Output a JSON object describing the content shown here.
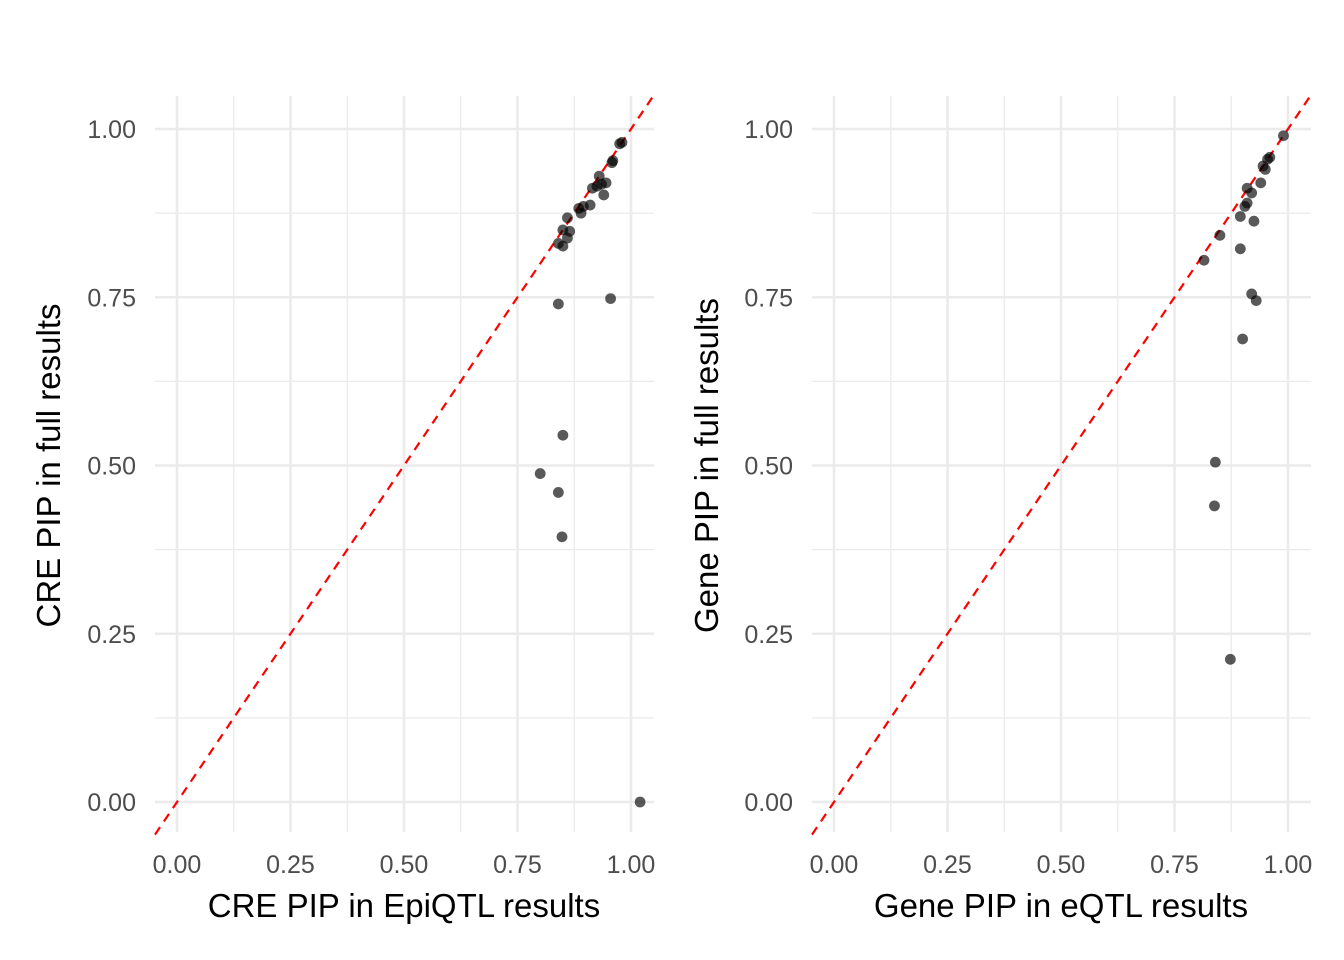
{
  "chart_data": [
    {
      "type": "scatter",
      "xlabel": "CRE PIP in EpiQTL results",
      "ylabel": "CRE PIP in full results",
      "xlim": [
        0.0,
        1.0
      ],
      "ylim": [
        0.0,
        1.0
      ],
      "x_ticks": [
        "0.00",
        "0.25",
        "0.50",
        "0.75",
        "1.00"
      ],
      "y_ticks": [
        "0.00",
        "0.25",
        "0.50",
        "0.75",
        "1.00"
      ],
      "grid": true,
      "reference_line": {
        "slope": 1,
        "intercept": 0,
        "style": "dashed",
        "color": "#ff0000"
      },
      "point_color": "#000000",
      "points": [
        {
          "x": 0.98,
          "y": 0.98
        },
        {
          "x": 0.975,
          "y": 0.978
        },
        {
          "x": 0.96,
          "y": 0.953
        },
        {
          "x": 0.958,
          "y": 0.95
        },
        {
          "x": 0.93,
          "y": 0.93
        },
        {
          "x": 0.945,
          "y": 0.92
        },
        {
          "x": 0.935,
          "y": 0.918
        },
        {
          "x": 0.925,
          "y": 0.915
        },
        {
          "x": 0.915,
          "y": 0.912
        },
        {
          "x": 0.94,
          "y": 0.902
        },
        {
          "x": 0.91,
          "y": 0.887
        },
        {
          "x": 0.895,
          "y": 0.885
        },
        {
          "x": 0.885,
          "y": 0.882
        },
        {
          "x": 0.89,
          "y": 0.875
        },
        {
          "x": 0.86,
          "y": 0.868
        },
        {
          "x": 0.865,
          "y": 0.848
        },
        {
          "x": 0.85,
          "y": 0.85
        },
        {
          "x": 0.86,
          "y": 0.838
        },
        {
          "x": 0.84,
          "y": 0.83
        },
        {
          "x": 0.85,
          "y": 0.826
        },
        {
          "x": 0.84,
          "y": 0.74
        },
        {
          "x": 0.955,
          "y": 0.748
        },
        {
          "x": 0.85,
          "y": 0.545
        },
        {
          "x": 0.8,
          "y": 0.488
        },
        {
          "x": 0.84,
          "y": 0.46
        },
        {
          "x": 0.848,
          "y": 0.394
        },
        {
          "x": 1.02,
          "y": 0.0
        }
      ]
    },
    {
      "type": "scatter",
      "xlabel": "Gene PIP in eQTL results",
      "ylabel": "Gene PIP in full results",
      "xlim": [
        0.0,
        1.0
      ],
      "ylim": [
        0.0,
        1.0
      ],
      "x_ticks": [
        "0.00",
        "0.25",
        "0.50",
        "0.75",
        "1.00"
      ],
      "y_ticks": [
        "0.00",
        "0.25",
        "0.50",
        "0.75",
        "1.00"
      ],
      "grid": true,
      "reference_line": {
        "slope": 1,
        "intercept": 0,
        "style": "dashed",
        "color": "#ff0000"
      },
      "point_color": "#000000",
      "points": [
        {
          "x": 0.99,
          "y": 0.99
        },
        {
          "x": 0.96,
          "y": 0.958
        },
        {
          "x": 0.955,
          "y": 0.955
        },
        {
          "x": 0.945,
          "y": 0.945
        },
        {
          "x": 0.95,
          "y": 0.94
        },
        {
          "x": 0.94,
          "y": 0.92
        },
        {
          "x": 0.91,
          "y": 0.912
        },
        {
          "x": 0.92,
          "y": 0.905
        },
        {
          "x": 0.91,
          "y": 0.89
        },
        {
          "x": 0.905,
          "y": 0.885
        },
        {
          "x": 0.895,
          "y": 0.87
        },
        {
          "x": 0.925,
          "y": 0.863
        },
        {
          "x": 0.85,
          "y": 0.842
        },
        {
          "x": 0.895,
          "y": 0.822
        },
        {
          "x": 0.815,
          "y": 0.805
        },
        {
          "x": 0.92,
          "y": 0.755
        },
        {
          "x": 0.93,
          "y": 0.745
        },
        {
          "x": 0.9,
          "y": 0.688
        },
        {
          "x": 0.84,
          "y": 0.505
        },
        {
          "x": 0.838,
          "y": 0.44
        },
        {
          "x": 0.873,
          "y": 0.212
        }
      ]
    }
  ]
}
